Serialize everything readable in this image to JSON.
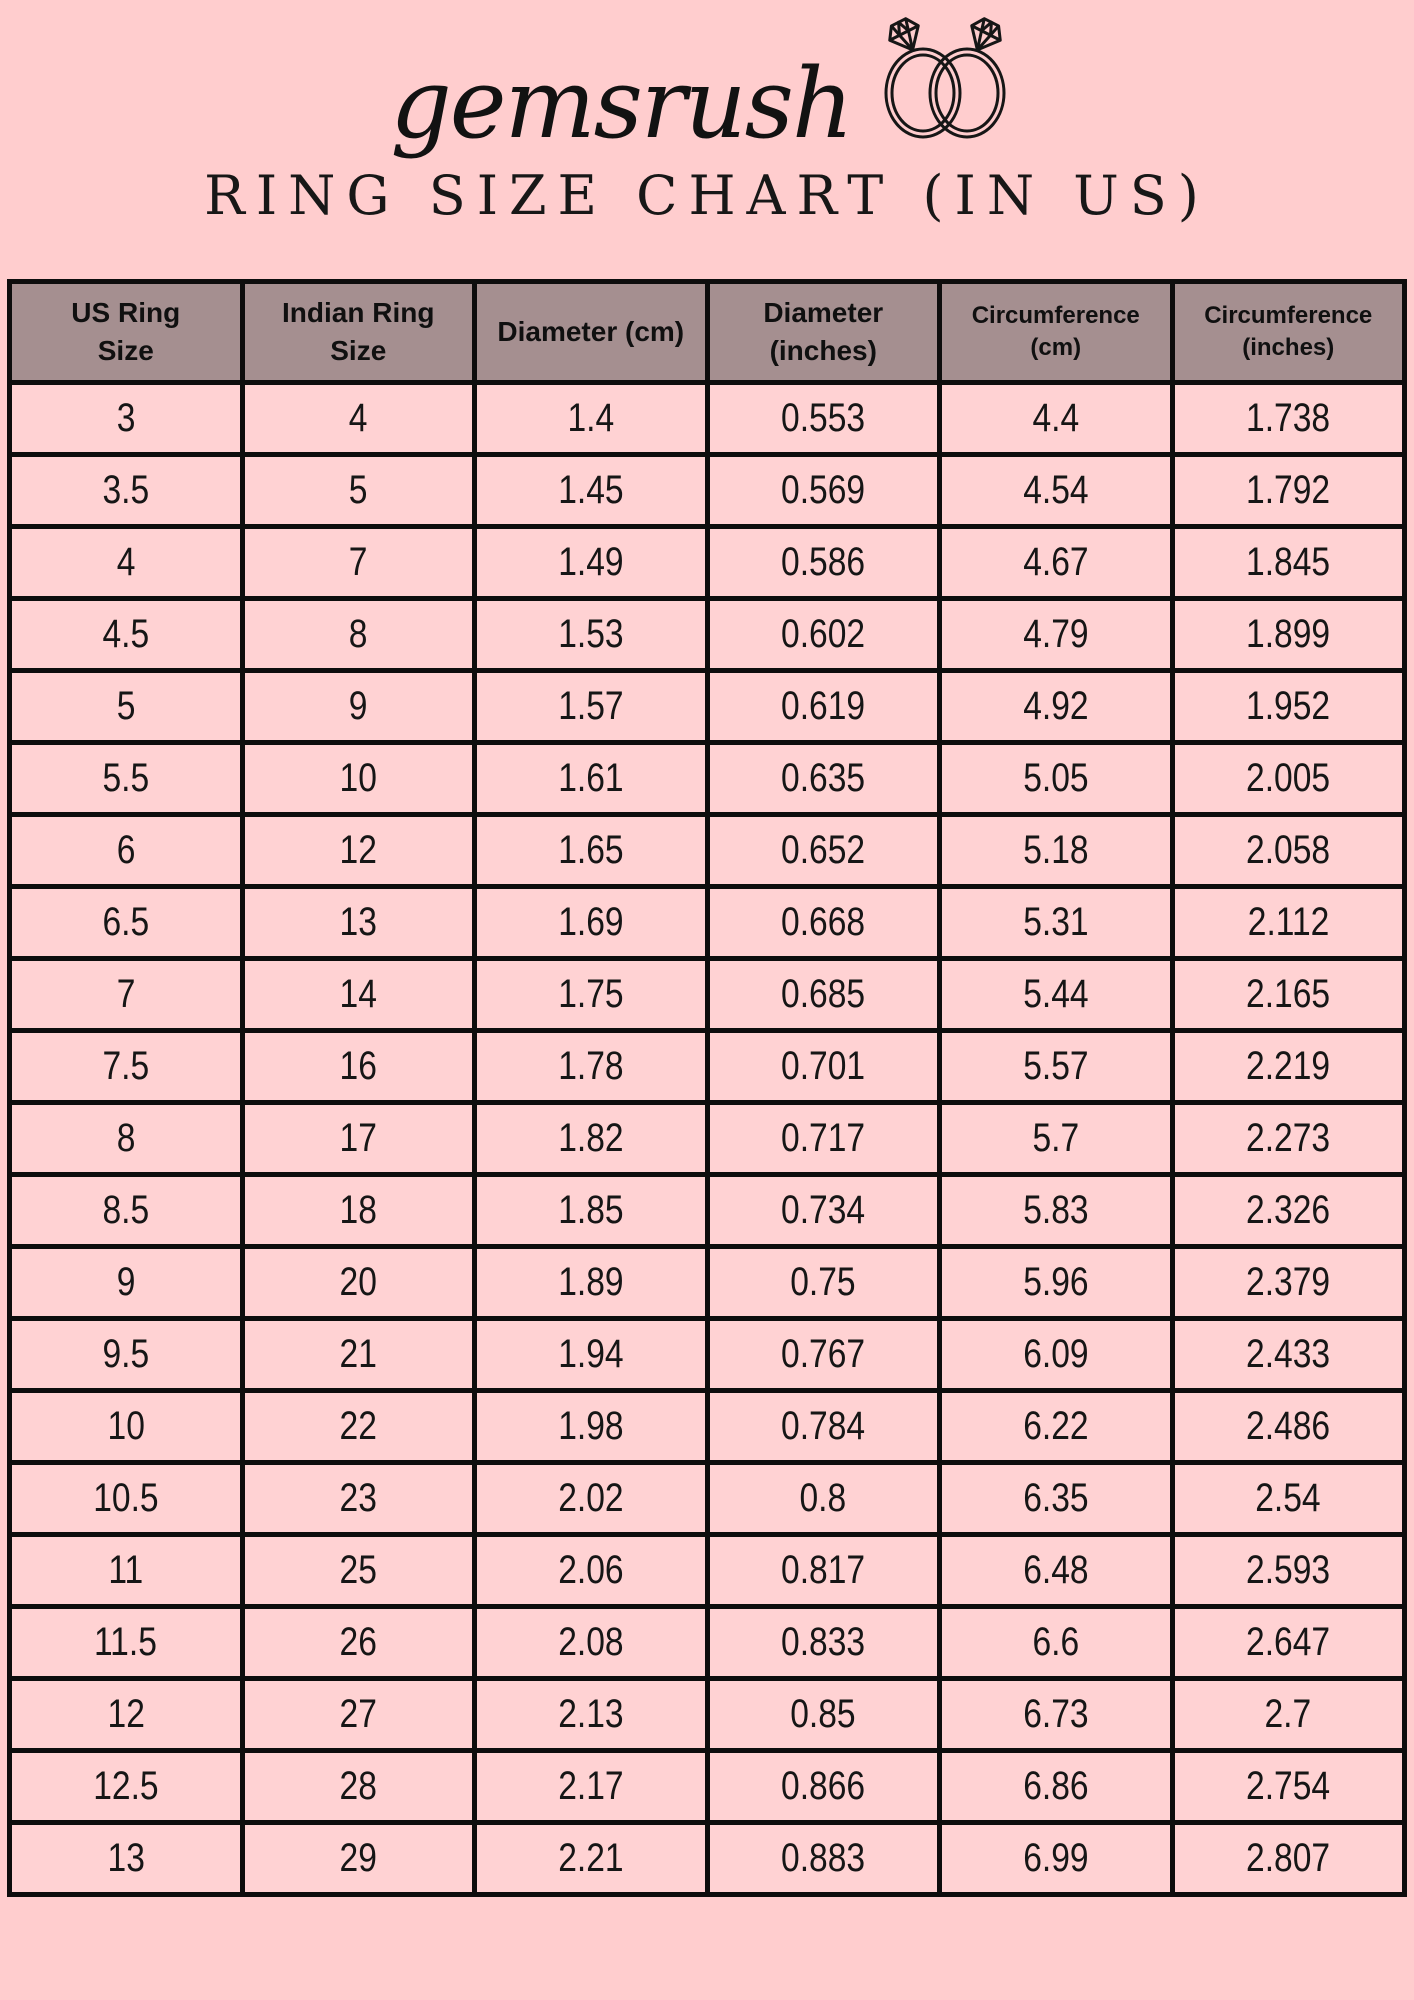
{
  "page": {
    "brand": "gemsrush",
    "title": "RING SIZE CHART (IN US)"
  },
  "icons": {
    "rings": "double-wedding-rings-with-diamonds-icon"
  },
  "colors": {
    "page_background": "#ffcdce",
    "cell_background": "#ffd2d3",
    "header_background": "#a58f90",
    "border": "#0d0d0d",
    "text": "#141414"
  },
  "chart_data": {
    "type": "table",
    "title": "RING SIZE CHART (IN US)",
    "legend_position": "none",
    "grid": true,
    "columns": [
      "US Ring\nSize",
      "Indian Ring\nSize",
      "Diameter (cm)",
      "Diameter\n(inches)",
      "Circumference\n(cm)",
      "Circumference\n(inches)"
    ],
    "rows": [
      [
        "3",
        "4",
        "1.4",
        "0.553",
        "4.4",
        "1.738"
      ],
      [
        "3.5",
        "5",
        "1.45",
        "0.569",
        "4.54",
        "1.792"
      ],
      [
        "4",
        "7",
        "1.49",
        "0.586",
        "4.67",
        "1.845"
      ],
      [
        "4.5",
        "8",
        "1.53",
        "0.602",
        "4.79",
        "1.899"
      ],
      [
        "5",
        "9",
        "1.57",
        "0.619",
        "4.92",
        "1.952"
      ],
      [
        "5.5",
        "10",
        "1.61",
        "0.635",
        "5.05",
        "2.005"
      ],
      [
        "6",
        "12",
        "1.65",
        "0.652",
        "5.18",
        "2.058"
      ],
      [
        "6.5",
        "13",
        "1.69",
        "0.668",
        "5.31",
        "2.112"
      ],
      [
        "7",
        "14",
        "1.75",
        "0.685",
        "5.44",
        "2.165"
      ],
      [
        "7.5",
        "16",
        "1.78",
        "0.701",
        "5.57",
        "2.219"
      ],
      [
        "8",
        "17",
        "1.82",
        "0.717",
        "5.7",
        "2.273"
      ],
      [
        "8.5",
        "18",
        "1.85",
        "0.734",
        "5.83",
        "2.326"
      ],
      [
        "9",
        "20",
        "1.89",
        "0.75",
        "5.96",
        "2.379"
      ],
      [
        "9.5",
        "21",
        "1.94",
        "0.767",
        "6.09",
        "2.433"
      ],
      [
        "10",
        "22",
        "1.98",
        "0.784",
        "6.22",
        "2.486"
      ],
      [
        "10.5",
        "23",
        "2.02",
        "0.8",
        "6.35",
        "2.54"
      ],
      [
        "11",
        "25",
        "2.06",
        "0.817",
        "6.48",
        "2.593"
      ],
      [
        "11.5",
        "26",
        "2.08",
        "0.833",
        "6.6",
        "2.647"
      ],
      [
        "12",
        "27",
        "2.13",
        "0.85",
        "6.73",
        "2.7"
      ],
      [
        "12.5",
        "28",
        "2.17",
        "0.866",
        "6.86",
        "2.754"
      ],
      [
        "13",
        "29",
        "2.21",
        "0.883",
        "6.99",
        "2.807"
      ]
    ]
  }
}
